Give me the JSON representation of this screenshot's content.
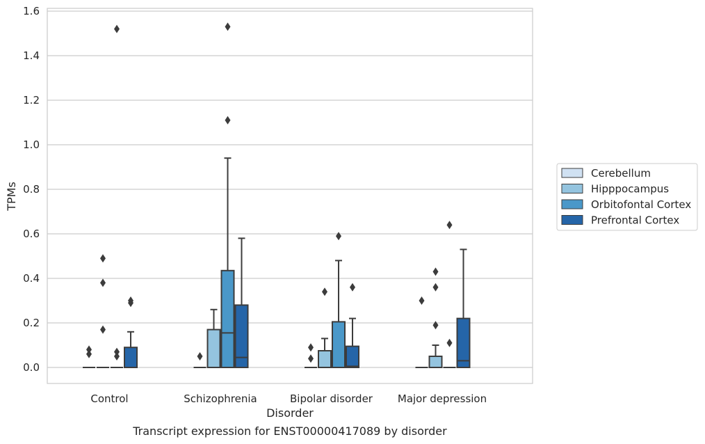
{
  "chart_data": {
    "type": "boxplot",
    "title": "",
    "caption": "Transcript expression for ENST00000417089 by disorder",
    "xlabel": "Disorder",
    "ylabel": "TPMs",
    "ylim": [
      -0.07,
      1.61
    ],
    "yticks": [
      "0.0",
      "0.2",
      "0.4",
      "0.6",
      "0.8",
      "1.0",
      "1.2",
      "1.4",
      "1.6"
    ],
    "grid": true,
    "legend_position": "right",
    "categories": [
      "Control",
      "Schizophrenia",
      "Bipolar disorder",
      "Major depression"
    ],
    "colors": [
      "#d0e1f2",
      "#94c4df",
      "#4a98c9",
      "#2565a8"
    ],
    "series": [
      {
        "name": "Cerebellum",
        "boxes": [
          {
            "q1": 0,
            "median": 0,
            "q3": 0,
            "whislo": 0,
            "whishi": 0,
            "fliers": [
              0.08,
              0.06
            ]
          },
          {
            "q1": 0,
            "median": 0,
            "q3": 0,
            "whislo": 0,
            "whishi": 0,
            "fliers": [
              0.05
            ]
          },
          {
            "q1": 0,
            "median": 0,
            "q3": 0,
            "whislo": 0,
            "whishi": 0,
            "fliers": [
              0.09,
              0.04
            ]
          },
          {
            "q1": 0,
            "median": 0,
            "q3": 0,
            "whislo": 0,
            "whishi": 0,
            "fliers": [
              0.3
            ]
          }
        ]
      },
      {
        "name": "Hipppocampus",
        "boxes": [
          {
            "q1": 0,
            "median": 0,
            "q3": 0,
            "whislo": 0,
            "whishi": 0,
            "fliers": [
              0.49,
              0.38,
              0.17
            ]
          },
          {
            "q1": 0,
            "median": 0,
            "q3": 0.17,
            "whislo": 0,
            "whishi": 0.26,
            "fliers": []
          },
          {
            "q1": 0,
            "median": 0,
            "q3": 0.075,
            "whislo": 0,
            "whishi": 0.13,
            "fliers": [
              0.34
            ]
          },
          {
            "q1": 0,
            "median": 0,
            "q3": 0.05,
            "whislo": 0,
            "whishi": 0.1,
            "fliers": [
              0.43,
              0.36,
              0.19
            ]
          }
        ]
      },
      {
        "name": "Orbitofontal Cortex",
        "boxes": [
          {
            "q1": 0,
            "median": 0,
            "q3": 0,
            "whislo": 0,
            "whishi": 0,
            "fliers": [
              1.52,
              0.07,
              0.05
            ]
          },
          {
            "q1": 0,
            "median": 0.155,
            "q3": 0.435,
            "whislo": 0,
            "whishi": 0.94,
            "fliers": [
              1.53,
              1.11
            ]
          },
          {
            "q1": 0,
            "median": 0,
            "q3": 0.205,
            "whislo": 0,
            "whishi": 0.48,
            "fliers": [
              0.59
            ]
          },
          {
            "q1": 0,
            "median": 0,
            "q3": 0,
            "whislo": 0,
            "whishi": 0,
            "fliers": [
              0.64,
              0.11
            ]
          }
        ]
      },
      {
        "name": "Prefrontal Cortex",
        "boxes": [
          {
            "q1": 0,
            "median": 0,
            "q3": 0.09,
            "whislo": 0,
            "whishi": 0.16,
            "fliers": [
              0.3,
              0.29
            ]
          },
          {
            "q1": 0,
            "median": 0.045,
            "q3": 0.28,
            "whislo": 0,
            "whishi": 0.58,
            "fliers": []
          },
          {
            "q1": 0,
            "median": 0.005,
            "q3": 0.095,
            "whislo": 0,
            "whishi": 0.22,
            "fliers": [
              0.36
            ]
          },
          {
            "q1": 0,
            "median": 0.03,
            "q3": 0.22,
            "whislo": 0,
            "whishi": 0.53,
            "fliers": []
          }
        ]
      }
    ]
  }
}
